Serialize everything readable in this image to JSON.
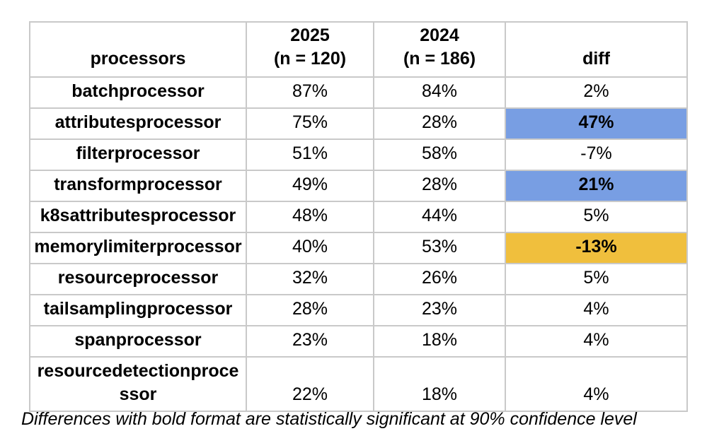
{
  "chart_data": {
    "type": "table",
    "columns": [
      {
        "label": "processors",
        "sublabel": ""
      },
      {
        "label": "2025",
        "sublabel": "(n = 120)"
      },
      {
        "label": "2024",
        "sublabel": "(n = 186)"
      },
      {
        "label": "diff",
        "sublabel": ""
      }
    ],
    "rows": [
      {
        "processor": "batchprocessor",
        "pct_2025": "87%",
        "pct_2024": "84%",
        "diff": "2%",
        "highlight": "none",
        "significant": false
      },
      {
        "processor": "attributesprocessor",
        "pct_2025": "75%",
        "pct_2024": "28%",
        "diff": "47%",
        "highlight": "blue",
        "significant": true
      },
      {
        "processor": "filterprocessor",
        "pct_2025": "51%",
        "pct_2024": "58%",
        "diff": "-7%",
        "highlight": "none",
        "significant": false
      },
      {
        "processor": "transformprocessor",
        "pct_2025": "49%",
        "pct_2024": "28%",
        "diff": "21%",
        "highlight": "blue",
        "significant": true
      },
      {
        "processor": "k8sattributesprocessor",
        "pct_2025": "48%",
        "pct_2024": "44%",
        "diff": "5%",
        "highlight": "none",
        "significant": false
      },
      {
        "processor": "memorylimiterprocessor",
        "pct_2025": "40%",
        "pct_2024": "53%",
        "diff": "-13%",
        "highlight": "gold",
        "significant": true
      },
      {
        "processor": "resourceprocessor",
        "pct_2025": "32%",
        "pct_2024": "26%",
        "diff": "5%",
        "highlight": "none",
        "significant": false
      },
      {
        "processor": "tailsamplingprocessor",
        "pct_2025": "28%",
        "pct_2024": "23%",
        "diff": "4%",
        "highlight": "none",
        "significant": false
      },
      {
        "processor": "spanprocessor",
        "pct_2025": "23%",
        "pct_2024": "18%",
        "diff": "4%",
        "highlight": "none",
        "significant": false
      },
      {
        "processor": "resourcedetectionprocessor",
        "pct_2025": "22%",
        "pct_2024": "18%",
        "diff": "4%",
        "highlight": "none",
        "significant": false
      }
    ],
    "footnote": "Differences with bold format are statistically significant at 90% confidence level",
    "colors": {
      "significant_increase_bg": "#789EE3",
      "significant_decrease_bg": "#F0BF3D",
      "border": "#C9C9C9",
      "text": "#000000",
      "background": "#FFFFFF"
    }
  }
}
